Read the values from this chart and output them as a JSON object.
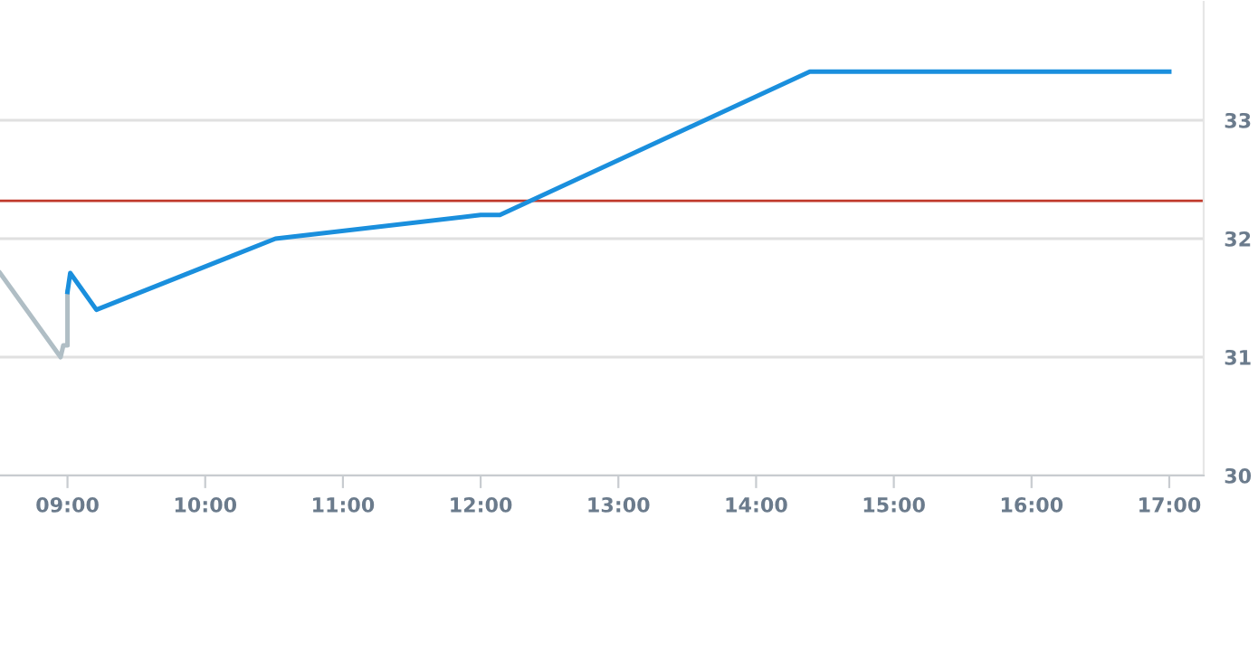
{
  "chart_data": {
    "type": "line",
    "series": [
      {
        "color": "#b0bec5",
        "x": [
          8.51,
          8.95,
          8.97,
          9.0,
          9.0
        ],
        "values": [
          31.71,
          31.0,
          31.1,
          31.1,
          31.55
        ]
      },
      {
        "color": "#1a8fdd",
        "x": [
          9.0,
          9.02,
          9.21,
          10.51,
          12.0,
          12.14,
          14.39,
          17.0
        ],
        "values": [
          31.55,
          31.71,
          31.4,
          32.0,
          32.2,
          32.2,
          33.41,
          33.41
        ]
      }
    ],
    "xlim": [
      8.51,
      17.25
    ],
    "ylim": [
      30,
      34
    ],
    "xticks": [
      {
        "value": 9,
        "label": "09:00"
      },
      {
        "value": 10,
        "label": "10:00"
      },
      {
        "value": 11,
        "label": "11:00"
      },
      {
        "value": 12,
        "label": "12:00"
      },
      {
        "value": 13,
        "label": "13:00"
      },
      {
        "value": 14,
        "label": "14:00"
      },
      {
        "value": 15,
        "label": "15:00"
      },
      {
        "value": 16,
        "label": "16:00"
      },
      {
        "value": 17,
        "label": "17:00"
      }
    ],
    "yticks": [
      30,
      31,
      32,
      33
    ],
    "ref_lines": [
      {
        "axis": "y",
        "value": 32.32,
        "color": "#c0392b"
      }
    ],
    "grid": "y",
    "legend": false,
    "marker": "none",
    "line_style": "solid"
  }
}
